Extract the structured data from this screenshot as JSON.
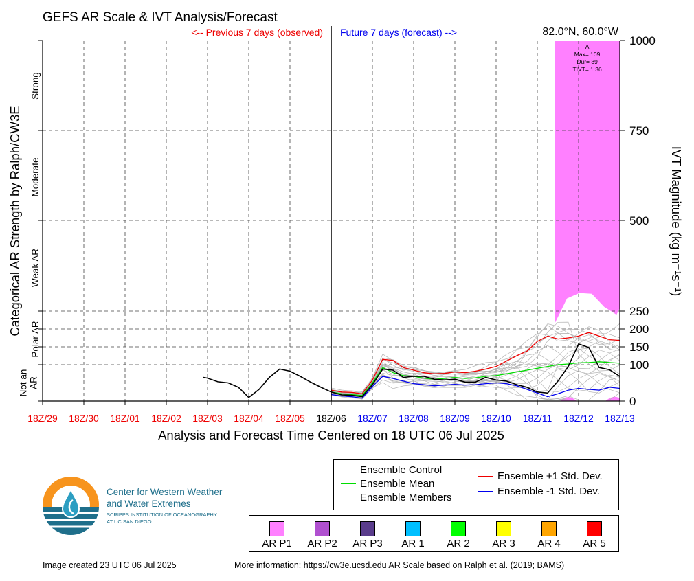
{
  "chart_data": {
    "type": "line",
    "title": "GEFS AR Scale & IVT Analysis/Forecast",
    "location": "82.0°N, 60.0°W",
    "previous_label": "<-- Previous 7 days (observed)",
    "future_label": "Future 7 days (forecast) -->",
    "xlabel": "Analysis and Forecast Time Centered on 18 UTC 06 Jul 2025",
    "ylabel_left": "Categorical AR Strength by Ralph/CW3E",
    "ylabel_right": "IVT Magnitude (kg m⁻¹s⁻¹)",
    "x_ticks": [
      "18Z/29",
      "18Z/30",
      "18Z/01",
      "18Z/02",
      "18Z/03",
      "18Z/04",
      "18Z/05",
      "18Z/06",
      "18Z/07",
      "18Z/08",
      "18Z/09",
      "18Z/10",
      "18Z/11",
      "18Z/12",
      "18Z/13"
    ],
    "x_tick_status": [
      "observed",
      "observed",
      "observed",
      "observed",
      "observed",
      "observed",
      "observed",
      "analysis",
      "forecast",
      "forecast",
      "forecast",
      "forecast",
      "forecast",
      "forecast",
      "forecast"
    ],
    "y_ticks": [
      0,
      100,
      150,
      200,
      250,
      500,
      750,
      1000
    ],
    "y_gridlines": [
      100,
      150,
      200,
      250,
      500,
      750
    ],
    "category_labels": [
      "Not an AR",
      "Polar AR",
      "Weak AR",
      "Moderate",
      "Strong"
    ],
    "xlim_days": [
      -7,
      7
    ],
    "analysis_day": 0,
    "ar_event": {
      "label": "A",
      "max": "Max= 109",
      "dur": "Dur= 39",
      "tivt": "TIVT= 1.36",
      "start_day": 5.42,
      "end_day": 7
    },
    "series": [
      {
        "name": "Ensemble Control",
        "color": "#000000",
        "x": [
          -3.1,
          -3,
          -2.75,
          -2.5,
          -2.25,
          -2,
          -1.75,
          -1.5,
          -1.25,
          -1,
          -0.75,
          -0.5,
          -0.25,
          0,
          0.25,
          0.5,
          0.75,
          1,
          1.25,
          1.5,
          1.75,
          2,
          2.25,
          2.5,
          2.75,
          3,
          3.25,
          3.5,
          3.75,
          4,
          4.25,
          4.5,
          4.75,
          5,
          5.25,
          5.5,
          5.75,
          6,
          6.25,
          6.5,
          6.75,
          7
        ],
        "values": [
          65,
          63,
          53,
          50,
          38,
          10,
          32,
          65,
          88,
          82,
          68,
          52,
          38,
          25,
          17,
          16,
          12,
          45,
          88,
          85,
          65,
          68,
          68,
          60,
          58,
          60,
          52,
          52,
          65,
          58,
          55,
          45,
          38,
          25,
          22,
          55,
          95,
          158,
          148,
          92,
          86,
          68
        ]
      },
      {
        "name": "Ensemble Mean",
        "color": "#00dd00",
        "x": [
          0,
          0.25,
          0.5,
          0.75,
          1,
          1.25,
          1.5,
          1.75,
          2,
          2.25,
          2.5,
          2.75,
          3,
          3.25,
          3.5,
          3.75,
          4,
          4.25,
          4.5,
          4.75,
          5,
          5.25,
          5.5,
          5.75,
          6,
          6.25,
          6.5,
          6.75,
          7
        ],
        "values": [
          25,
          20,
          18,
          15,
          50,
          92,
          78,
          70,
          68,
          63,
          60,
          62,
          65,
          62,
          64,
          68,
          70,
          75,
          80,
          85,
          90,
          95,
          100,
          102,
          105,
          106,
          108,
          106,
          104
        ]
      },
      {
        "name": "Ensemble +1 Std. Dev.",
        "color": "#ee0000",
        "x": [
          0,
          0.25,
          0.5,
          0.75,
          1,
          1.25,
          1.5,
          1.75,
          2,
          2.25,
          2.5,
          2.75,
          3,
          3.25,
          3.5,
          3.75,
          4,
          4.25,
          4.5,
          4.75,
          5,
          5.25,
          5.5,
          5.75,
          6,
          6.25,
          6.5,
          6.75,
          7
        ],
        "values": [
          30,
          25,
          24,
          20,
          58,
          115,
          112,
          92,
          85,
          78,
          75,
          76,
          80,
          78,
          82,
          88,
          95,
          110,
          125,
          138,
          165,
          180,
          172,
          175,
          180,
          190,
          180,
          170,
          168
        ]
      },
      {
        "name": "Ensemble -1 Std. Dev.",
        "color": "#0000ee",
        "x": [
          0,
          0.25,
          0.5,
          0.75,
          1,
          1.25,
          1.5,
          1.75,
          2,
          2.25,
          2.5,
          2.75,
          3,
          3.25,
          3.5,
          3.75,
          4,
          4.25,
          4.5,
          4.75,
          5,
          5.25,
          5.5,
          5.75,
          6,
          6.25,
          6.5,
          6.75,
          7
        ],
        "values": [
          18,
          14,
          12,
          8,
          40,
          68,
          62,
          55,
          48,
          45,
          42,
          44,
          46,
          44,
          45,
          48,
          50,
          48,
          42,
          32,
          22,
          12,
          20,
          30,
          35,
          32,
          30,
          38,
          35
        ]
      }
    ],
    "members_name": "Ensemble Members",
    "member_count": 20,
    "legend_labels": [
      "AR P1",
      "AR P2",
      "AR P3",
      "AR 1",
      "AR 2",
      "AR 3",
      "AR 4",
      "AR 5"
    ],
    "legend_colors": [
      "#ff80ff",
      "#b050d0",
      "#5a3c8c",
      "#00bfff",
      "#00ff00",
      "#ffff00",
      "#ffa500",
      "#ff0000"
    ],
    "ar_p1_color": "#ff80ff",
    "observed_color": "#ee0000",
    "forecast_color": "#0000ee"
  },
  "logo": {
    "name_line1": "Center for Western Weather",
    "name_line2": "and Water Extremes",
    "sub_line1": "SCRIPPS INSTITUTION OF OCEANOGRAPHY",
    "sub_line2": "AT UC SAN DIEGO"
  },
  "footer": {
    "created": "Image created 23 UTC 06 Jul 2025",
    "info": "More information: https://cw3e.ucsd.edu AR Scale based on Ralph et al. (2019; BAMS)"
  }
}
